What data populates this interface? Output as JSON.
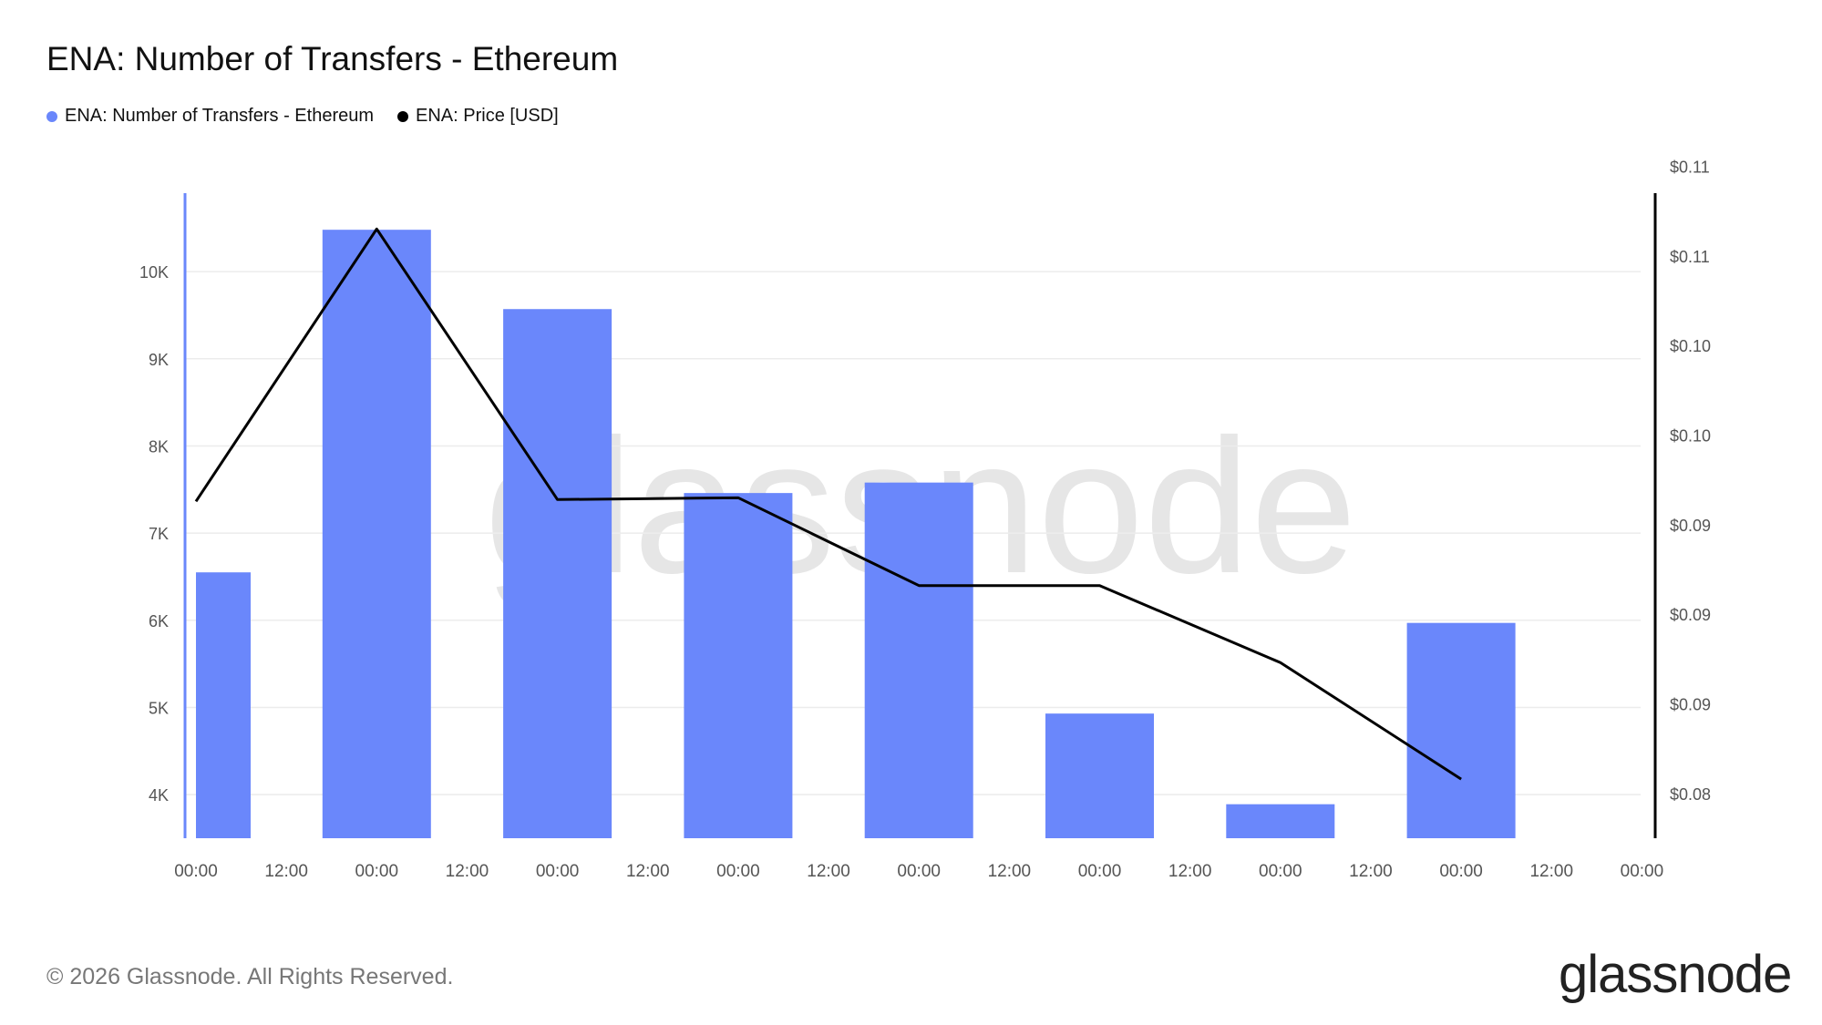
{
  "title": "ENA: Number of Transfers - Ethereum",
  "legend": [
    {
      "label": "ENA: Number of Transfers - Ethereum",
      "color": "#6a87fb"
    },
    {
      "label": "ENA: Price [USD]",
      "color": "#000000"
    }
  ],
  "watermark": "glassnode",
  "footer": {
    "copyright": "© 2026 Glassnode. All Rights Reserved.",
    "logo": "glassnode"
  },
  "chart_data": {
    "type": "bar",
    "x_tick_labels": [
      "00:00",
      "12:00",
      "00:00",
      "12:00",
      "00:00",
      "12:00",
      "00:00",
      "12:00",
      "00:00",
      "12:00",
      "00:00",
      "12:00",
      "00:00",
      "12:00",
      "00:00",
      "12:00",
      "00:00"
    ],
    "left_axis": {
      "ticks": [
        "4K",
        "5K",
        "6K",
        "7K",
        "8K",
        "9K",
        "10K"
      ],
      "tick_values": [
        4000,
        5000,
        6000,
        7000,
        8000,
        9000,
        10000
      ],
      "range": [
        3500,
        10900
      ]
    },
    "right_axis": {
      "ticks": [
        "$0.08",
        "$0.09",
        "$0.09",
        "$0.09",
        "$0.10",
        "$0.10",
        "$0.11",
        "$0.11"
      ],
      "tick_values": [
        0.08,
        0.085,
        0.09,
        0.095,
        0.1,
        0.105,
        0.11,
        0.115
      ],
      "range": [
        0.0775,
        0.1135
      ]
    },
    "series": [
      {
        "name": "ENA: Number of Transfers - Ethereum",
        "type": "bar",
        "color": "#6a87fb",
        "x": [
          0.15,
          1,
          2,
          3,
          4,
          5,
          6,
          7
        ],
        "values": [
          6550,
          10480,
          9570,
          7460,
          7580,
          4930,
          3890,
          5970
        ]
      },
      {
        "name": "ENA: Price [USD]",
        "type": "line",
        "color": "#000000",
        "x": [
          0,
          1,
          2,
          3,
          4,
          5,
          6,
          7
        ],
        "values": [
          0.0963,
          0.1115,
          0.0964,
          0.0965,
          0.0916,
          0.0916,
          0.0873,
          0.0808
        ]
      }
    ]
  }
}
